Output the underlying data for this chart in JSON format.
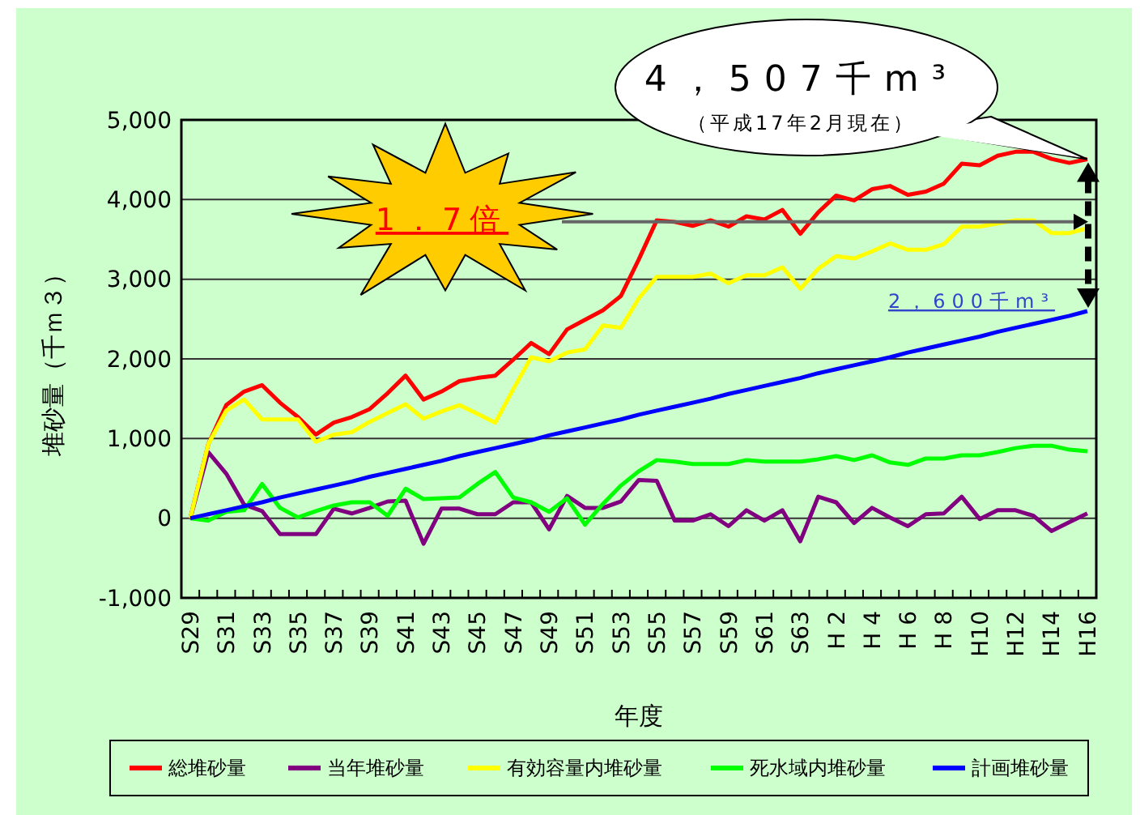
{
  "chart_data": {
    "type": "line",
    "xlabel": "年度",
    "ylabel": "堆砂量（千ｍ３）",
    "categories": [
      "S29",
      null,
      "S31",
      null,
      "S33",
      null,
      "S35",
      null,
      "S37",
      null,
      "S39",
      null,
      "S41",
      null,
      "S43",
      null,
      "S45",
      null,
      "S47",
      null,
      "S49",
      null,
      "S51",
      null,
      "S53",
      null,
      "S55",
      null,
      "S57",
      null,
      "S59",
      null,
      "S61",
      null,
      "S63",
      null,
      "H 2",
      null,
      "H 4",
      null,
      "H 6",
      null,
      "H 8",
      null,
      "H10",
      null,
      "H12",
      null,
      "H14",
      null,
      "H16"
    ],
    "ylim": [
      -1000,
      5000
    ],
    "yticks": [
      {
        "value": -1000,
        "label": "-1,000"
      },
      0,
      {
        "value": 1000,
        "label": "1,000"
      },
      {
        "value": 2000,
        "label": "2,000"
      },
      {
        "value": 3000,
        "label": "3,000"
      },
      {
        "value": 4000,
        "label": "4,000"
      },
      {
        "value": 5000,
        "label": "5,000"
      }
    ],
    "grid": "y",
    "legend": "bottom",
    "marker": "none",
    "line_style": "solid",
    "series": [
      {
        "name": "総堆砂量",
        "color": "#ff0000",
        "values": [
          0,
          930,
          1420,
          1590,
          1670,
          1450,
          1270,
          1050,
          1200,
          1270,
          1370,
          1570,
          1790,
          1490,
          1590,
          1720,
          1760,
          1790,
          1990,
          2200,
          2060,
          2370,
          2490,
          2610,
          2790,
          3250,
          3740,
          3720,
          3670,
          3740,
          3660,
          3790,
          3750,
          3870,
          3570,
          3840,
          4050,
          3990,
          4130,
          4170,
          4060,
          4100,
          4200,
          4450,
          4430,
          4550,
          4600,
          4600,
          4510,
          4460,
          4507
        ]
      },
      {
        "name": "当年堆砂量",
        "color": "#800080",
        "values": [
          0,
          830,
          560,
          170,
          90,
          -200,
          -200,
          -200,
          120,
          60,
          130,
          210,
          220,
          -320,
          120,
          120,
          50,
          50,
          200,
          200,
          -140,
          280,
          130,
          130,
          210,
          480,
          470,
          -30,
          -30,
          50,
          -100,
          100,
          -30,
          100,
          -290,
          270,
          200,
          -60,
          130,
          10,
          -100,
          50,
          60,
          270,
          -10,
          100,
          100,
          30,
          -160,
          -50,
          60
        ]
      },
      {
        "name": "有効容量内堆砂量",
        "color": "#ffff00",
        "values": [
          0,
          930,
          1350,
          1490,
          1240,
          1240,
          1240,
          960,
          1050,
          1080,
          1210,
          1320,
          1430,
          1250,
          1340,
          1420,
          1310,
          1200,
          1620,
          2020,
          1970,
          2080,
          2120,
          2420,
          2390,
          2760,
          3030,
          3030,
          3030,
          3070,
          2950,
          3050,
          3050,
          3150,
          2880,
          3130,
          3290,
          3260,
          3350,
          3450,
          3370,
          3370,
          3440,
          3660,
          3660,
          3700,
          3740,
          3740,
          3580,
          3580,
          3640
        ]
      },
      {
        "name": "死水域内堆砂量",
        "color": "#00ff00",
        "values": [
          0,
          -30,
          80,
          100,
          430,
          130,
          10,
          90,
          160,
          200,
          200,
          30,
          370,
          240,
          250,
          260,
          430,
          580,
          260,
          200,
          80,
          250,
          -80,
          180,
          410,
          590,
          730,
          710,
          680,
          680,
          680,
          730,
          710,
          710,
          710,
          740,
          780,
          730,
          790,
          700,
          670,
          750,
          750,
          790,
          790,
          830,
          880,
          910,
          910,
          860,
          840
        ]
      },
      {
        "name": "計画堆砂量",
        "color": "#0000ff",
        "values": [
          0,
          50,
          100,
          150,
          200,
          260,
          310,
          360,
          410,
          460,
          520,
          570,
          620,
          670,
          720,
          780,
          830,
          880,
          930,
          980,
          1040,
          1090,
          1140,
          1190,
          1240,
          1300,
          1350,
          1400,
          1450,
          1500,
          1560,
          1610,
          1660,
          1710,
          1760,
          1820,
          1870,
          1920,
          1970,
          2020,
          2080,
          2130,
          2180,
          2230,
          2280,
          2340,
          2390,
          2440,
          2490,
          2540,
          2600
        ]
      }
    ],
    "annotations": [
      {
        "text": "4，507千m³",
        "x": "H16",
        "y": 4507
      },
      "（平成17年2月現在）",
      "1．7倍",
      "2，600千m³"
    ]
  }
}
